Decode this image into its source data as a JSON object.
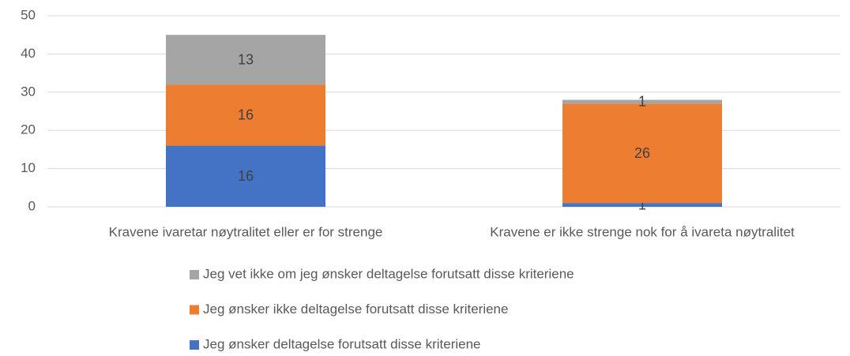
{
  "chart_data": {
    "type": "stacked_bar",
    "categories": [
      "Kravene ivaretar nøytralitet eller er for strenge",
      "Kravene er ikke strenge nok for å ivareta nøytralitet"
    ],
    "series": [
      {
        "name": "Jeg ønsker deltagelse forutsatt disse kriteriene",
        "color": "#4472c4",
        "values": [
          16,
          1
        ]
      },
      {
        "name": "Jeg ønsker ikke deltagelse forutsatt disse kriteriene",
        "color": "#ed7d31",
        "values": [
          16,
          26
        ]
      },
      {
        "name": "Jeg vet ikke om jeg ønsker deltagelse forutsatt disse kriteriene",
        "color": "#a5a5a5",
        "values": [
          13,
          1
        ]
      }
    ],
    "ylim": [
      0,
      50
    ],
    "yticks": [
      0,
      10,
      20,
      30,
      40,
      50
    ],
    "grid": true,
    "legend": "bottom"
  }
}
